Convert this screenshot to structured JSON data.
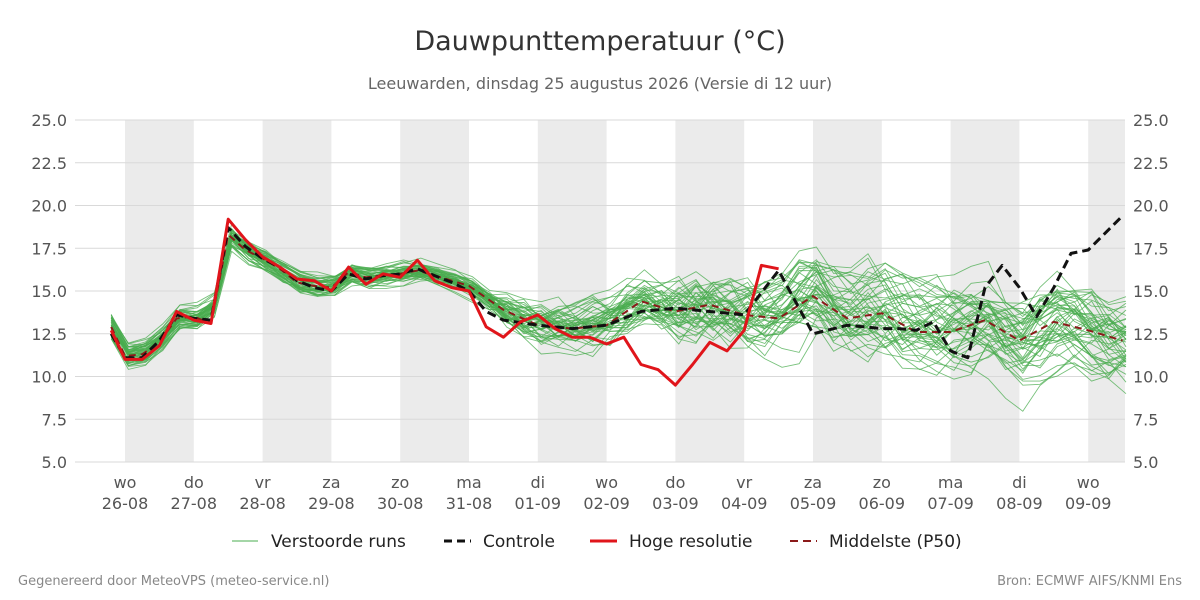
{
  "chart_data": {
    "type": "line",
    "title": "Dauwpunttemperatuur (°C)",
    "subtitle": "Leeuwarden, dinsdag 25 augustus 2026 (Versie di 12 uur)",
    "ylim": [
      5.0,
      25.0
    ],
    "yticks": [
      "5.0",
      "7.5",
      "10.0",
      "12.5",
      "15.0",
      "17.5",
      "20.0",
      "22.5",
      "25.0"
    ],
    "x_ticks": [
      {
        "day": "wo",
        "date": "26-08"
      },
      {
        "day": "do",
        "date": "27-08"
      },
      {
        "day": "vr",
        "date": "28-08"
      },
      {
        "day": "za",
        "date": "29-08"
      },
      {
        "day": "zo",
        "date": "30-08"
      },
      {
        "day": "ma",
        "date": "31-08"
      },
      {
        "day": "di",
        "date": "01-09"
      },
      {
        "day": "wo",
        "date": "02-09"
      },
      {
        "day": "do",
        "date": "03-09"
      },
      {
        "day": "vr",
        "date": "04-09"
      },
      {
        "day": "za",
        "date": "05-09"
      },
      {
        "day": "zo",
        "date": "06-09"
      },
      {
        "day": "ma",
        "date": "07-09"
      },
      {
        "day": "di",
        "date": "08-09"
      },
      {
        "day": "wo",
        "date": "09-09"
      }
    ],
    "x_unit": "days since first tick (26-08 00h)",
    "grid": true,
    "legend_position": "bottom",
    "series": [
      {
        "name": "Controle",
        "color": "#111111",
        "style": "dashed",
        "x": [
          -0.2,
          0.0,
          0.25,
          0.5,
          0.75,
          1.0,
          1.25,
          1.5,
          1.75,
          2.0,
          2.25,
          2.5,
          2.75,
          3.0,
          3.25,
          3.5,
          3.75,
          4.0,
          4.25,
          4.5,
          4.75,
          5.0,
          5.25,
          5.5,
          6.0,
          6.5,
          7.0,
          7.5,
          8.0,
          8.5,
          9.0,
          9.5,
          10.0,
          10.5,
          11.0,
          11.25,
          11.5,
          11.75,
          12.0,
          12.25,
          12.5,
          12.75,
          13.0,
          13.25,
          13.5,
          13.75,
          14.0,
          14.5
        ],
        "y": [
          12.5,
          11.1,
          11.1,
          12.1,
          13.6,
          13.4,
          13.3,
          18.7,
          17.6,
          16.9,
          16.4,
          15.6,
          15.2,
          15.0,
          16.0,
          15.7,
          15.9,
          16.0,
          16.3,
          15.9,
          15.5,
          15.0,
          13.8,
          13.3,
          13.0,
          12.8,
          13.0,
          13.8,
          14.0,
          13.8,
          13.6,
          16.2,
          12.5,
          13.0,
          12.8,
          12.8,
          12.7,
          13.2,
          11.5,
          11.1,
          15.2,
          16.5,
          15.2,
          13.5,
          15.2,
          17.2,
          17.4,
          19.4
        ]
      },
      {
        "name": "Hoge resolutie",
        "color": "#e0151b",
        "style": "solid",
        "x": [
          -0.2,
          0.0,
          0.25,
          0.5,
          0.75,
          1.0,
          1.25,
          1.5,
          1.75,
          2.0,
          2.25,
          2.5,
          2.75,
          3.0,
          3.25,
          3.5,
          3.75,
          4.0,
          4.25,
          4.5,
          4.75,
          5.0,
          5.25,
          5.5,
          5.75,
          6.0,
          6.25,
          6.5,
          6.75,
          7.0,
          7.25,
          7.5,
          7.75,
          8.0,
          8.25,
          8.5,
          8.75,
          9.0,
          9.25,
          9.5
        ],
        "y": [
          12.7,
          11.0,
          11.0,
          11.8,
          13.8,
          13.3,
          13.1,
          19.2,
          18.0,
          17.0,
          16.4,
          15.7,
          15.6,
          15.0,
          16.4,
          15.4,
          16.0,
          15.8,
          16.8,
          15.6,
          15.2,
          15.0,
          12.9,
          12.3,
          13.2,
          13.6,
          12.8,
          12.3,
          12.3,
          11.9,
          12.3,
          10.7,
          10.4,
          9.5,
          10.7,
          12.0,
          11.5,
          12.7,
          16.5,
          16.3
        ]
      },
      {
        "name": "Middelste (P50)",
        "color": "#8b1a1a",
        "style": "dashed",
        "x": [
          -0.2,
          0.0,
          0.25,
          0.5,
          0.75,
          1.0,
          1.25,
          1.5,
          1.75,
          2.0,
          2.25,
          2.5,
          2.75,
          3.0,
          3.25,
          3.5,
          3.75,
          4.0,
          4.25,
          4.5,
          4.75,
          5.0,
          5.5,
          6.0,
          6.5,
          7.0,
          7.5,
          8.0,
          8.5,
          9.0,
          9.5,
          10.0,
          10.5,
          11.0,
          11.5,
          12.0,
          12.5,
          13.0,
          13.5,
          14.0,
          14.5
        ],
        "y": [
          12.9,
          11.2,
          11.3,
          12.0,
          13.4,
          13.5,
          13.1,
          18.3,
          17.4,
          16.9,
          16.3,
          15.5,
          15.3,
          15.2,
          16.1,
          15.8,
          15.9,
          16.0,
          16.2,
          15.9,
          15.6,
          15.3,
          13.9,
          13.0,
          12.8,
          13.0,
          14.4,
          13.8,
          14.2,
          13.6,
          13.4,
          14.7,
          13.4,
          13.7,
          12.6,
          12.6,
          13.3,
          12.1,
          13.2,
          12.7,
          12.1
        ]
      }
    ],
    "ensemble": {
      "name": "Verstoorde runs",
      "color": "#4aac4f",
      "members": 50
    }
  },
  "legend": {
    "ensemble_label": "Verstoorde runs",
    "control_label": "Controle",
    "hires_label": "Hoge resolutie",
    "p50_label": "Middelste (P50)"
  },
  "footer": {
    "left": "Gegenereerd door MeteoVPS (meteo-service.nl)",
    "right": "Bron: ECMWF AIFS/KNMI Ens"
  }
}
